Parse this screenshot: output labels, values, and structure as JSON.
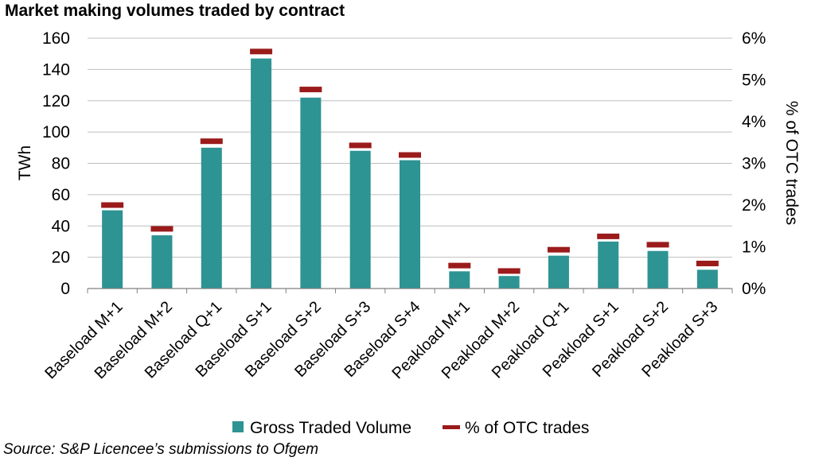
{
  "chart_data": {
    "type": "bar",
    "title": "Market making volumes traded by contract",
    "source": "Source: S&P Licencee’s submissions to Ofgem",
    "categories": [
      "Baseload M+1",
      "Baseload M+2",
      "Baseload Q+1",
      "Baseload S+1",
      "Baseload S+2",
      "Baseload S+3",
      "Baseload S+4",
      "Peakload M+1",
      "Peakload M+2",
      "Peakload Q+1",
      "Peakload S+1",
      "Peakload S+2",
      "Peakload S+3"
    ],
    "series": [
      {
        "name": "Gross Traded Volume",
        "axis": "left",
        "color": "#2E9393",
        "values": [
          50,
          34,
          90,
          147,
          122,
          88,
          82,
          11,
          8,
          21,
          30,
          24,
          12
        ]
      },
      {
        "name": "% of OTC trades",
        "axis": "right",
        "color": "#9B1B1B",
        "values": [
          2.0,
          1.43,
          3.53,
          5.68,
          4.77,
          3.43,
          3.2,
          0.55,
          0.42,
          0.93,
          1.25,
          1.05,
          0.6
        ]
      }
    ],
    "ylabel": "TWh",
    "y2label": "% of OTC trades",
    "ylim": [
      0,
      160
    ],
    "yticks": [
      "0",
      "20",
      "40",
      "60",
      "80",
      "100",
      "120",
      "140",
      "160"
    ],
    "y2lim": [
      0,
      6
    ],
    "y2ticks": [
      "0%",
      "1%",
      "2%",
      "3%",
      "4%",
      "5%",
      "6%"
    ],
    "grid": true,
    "legend_position": "bottom"
  }
}
